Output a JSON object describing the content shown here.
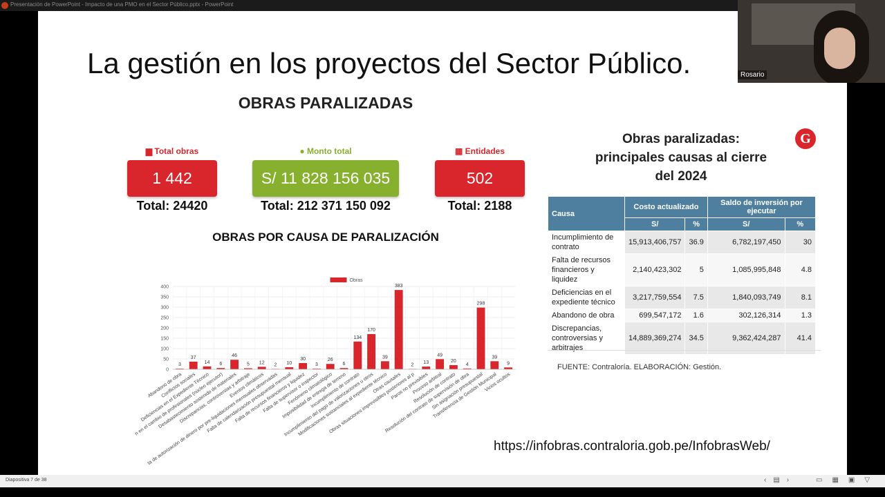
{
  "window": {
    "title": "Presentación de PowerPoint - Impacto de una PMO en el Sector Público.pptx - PowerPoint",
    "participant": "Rosario",
    "status": "Diapositiva 7 de 38"
  },
  "slide": {
    "title": "La gestión en los proyectos del Sector Público.",
    "heading": "OBRAS PARALIZADAS",
    "kpis": [
      {
        "label": "Total obras",
        "value": "1 442",
        "total": "Total: 24420"
      },
      {
        "label": "Monto total",
        "value": "S/ 11 828 156 035",
        "total": "Total: 212 371 150 092"
      },
      {
        "label": "Entidades",
        "value": "502",
        "total": "Total: 2188"
      }
    ],
    "chart_heading": "OBRAS POR CAUSA DE PARALIZACIÓN",
    "table_title": "Obras paralizadas: principales causas al cierre del 2024",
    "logo": "G",
    "table": {
      "header": [
        "Causa",
        "Costo actualizado",
        "Saldo de inversión por ejecutar"
      ],
      "subheader": [
        "S/",
        "%",
        "S/",
        "%"
      ],
      "rows": [
        [
          "Incumplimiento de contrato",
          "15,913,406,757",
          "36.9",
          "6,782,197,450",
          "30"
        ],
        [
          "Falta de recursos financieros y liquidez",
          "2,140,423,302",
          "5",
          "1,085,995,848",
          "4.8"
        ],
        [
          "Deficiencias en el expediente técnico",
          "3,217,759,554",
          "7.5",
          "1,840,093,749",
          "8.1"
        ],
        [
          "Abandono de obra",
          "699,547,172",
          "1.6",
          "302,126,314",
          "1.3"
        ],
        [
          "Discrepancias, controversias y arbitrajes",
          "14,889,369,274",
          "34.5",
          "9,362,424,287",
          "41.4"
        ]
      ]
    },
    "source": "FUENTE: Contraloría. ELABORACIÓN: Gestión.",
    "url": "https://infobras.contraloria.gob.pe/InfobrasWeb/"
  },
  "chart_data": {
    "type": "bar",
    "categories": [
      "Abandono de obra",
      "Conflictos sociales",
      "Deficiencias en el Expediente Técnico",
      "n en el cambio de profesionales (núcleo ejecutor)",
      "Desabastecimiento sostenido de materiales",
      "Discrepancias, controversias y arbitraje",
      "Eventos climáticos",
      "ta de autorización de dinero por pre-liquidaciones mensuales observadas",
      "Falta de calendarización presupuestal mensual",
      "Falta de recursos financieros y liquidez",
      "Falta de supervisor o inspector",
      "Fenómeno climatológico",
      "Imposibilidad de entrega de terreno",
      "Incumplimiento de contrato",
      "Incumplimiento del pago de valorizaciones u otros",
      "Modificaciones sustanciales al expediente técnico",
      "Otras causales",
      "Obras situaciones imprevisibles posteriores al p",
      "Paros no previsibles",
      "Proceso arbitral",
      "Resolución de contrato",
      "Resolución del contrato de supervisión de obra",
      "Sin asignación presupuestal",
      "Transferencia de Gestión Municipal",
      "Vicios ocultos"
    ],
    "series": [
      {
        "name": "Obras",
        "color": "#d9262c",
        "values": [
          3,
          37,
          14,
          6,
          46,
          5,
          12,
          2,
          10,
          30,
          3,
          26,
          6,
          134,
          170,
          39,
          383,
          2,
          13,
          49,
          20,
          4,
          298,
          39,
          9
        ]
      }
    ],
    "ylim": [
      0,
      400
    ],
    "yticks": [
      0,
      50,
      100,
      150,
      200,
      250,
      300,
      350,
      400
    ],
    "grid": true,
    "legend": "top"
  }
}
